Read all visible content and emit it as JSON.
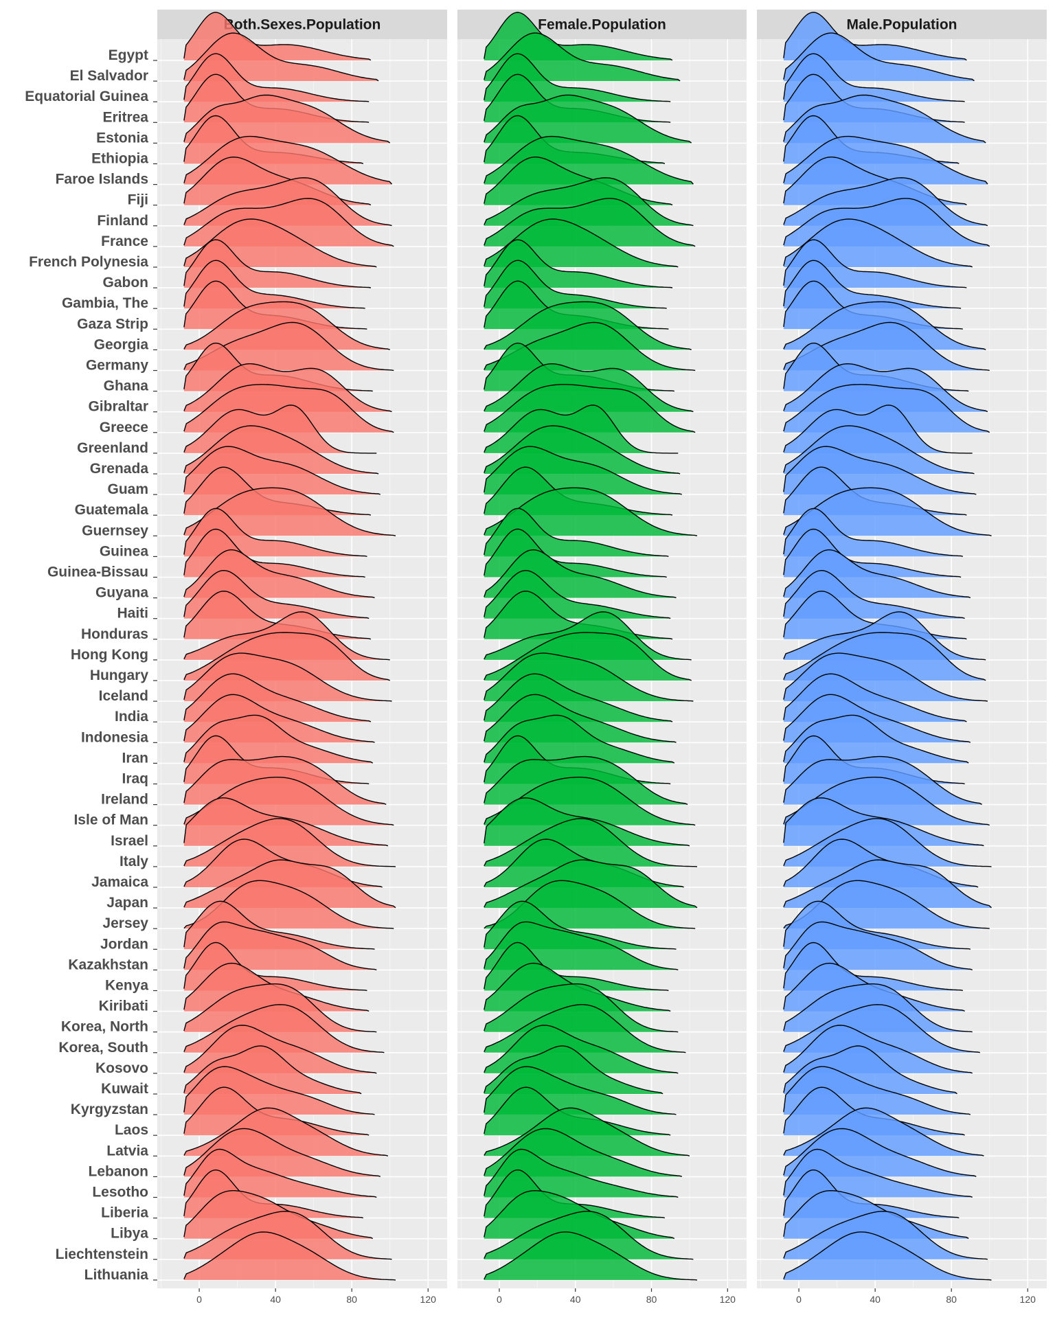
{
  "chart_data": {
    "type": "ridgeline",
    "facets": [
      "Both.Sexes.Population",
      "Female.Population",
      "Male.Population"
    ],
    "x_ticks": [
      0,
      40,
      80,
      120
    ],
    "xlim": [
      -22,
      130
    ],
    "countries": [
      {
        "name": "Egypt",
        "peaks": [
          [
            8,
            1.0,
            10
          ],
          [
            45,
            0.35,
            20
          ]
        ],
        "end": 90
      },
      {
        "name": "El Salvador",
        "peaks": [
          [
            17,
            0.9,
            14
          ],
          [
            55,
            0.3,
            18
          ]
        ],
        "end": 94
      },
      {
        "name": "Equatorial Guinea",
        "peaks": [
          [
            8,
            1.0,
            10
          ],
          [
            40,
            0.3,
            18
          ]
        ],
        "end": 89
      },
      {
        "name": "Eritrea",
        "peaks": [
          [
            8,
            1.0,
            10
          ],
          [
            40,
            0.3,
            18
          ]
        ],
        "end": 89
      },
      {
        "name": "Estonia",
        "peaks": [
          [
            8,
            0.55,
            10
          ],
          [
            30,
            0.6,
            12
          ],
          [
            55,
            0.7,
            18
          ]
        ],
        "end": 100
      },
      {
        "name": "Ethiopia",
        "peaks": [
          [
            8,
            1.0,
            10
          ],
          [
            40,
            0.25,
            20
          ]
        ],
        "end": 86
      },
      {
        "name": "Faroe Islands",
        "peaks": [
          [
            20,
            0.6,
            16
          ],
          [
            55,
            0.55,
            20
          ]
        ],
        "end": 101
      },
      {
        "name": "Fiji",
        "peaks": [
          [
            15,
            0.8,
            14
          ],
          [
            45,
            0.45,
            18
          ]
        ],
        "end": 90
      },
      {
        "name": "Finland",
        "peaks": [
          [
            15,
            0.45,
            14
          ],
          [
            40,
            0.55,
            16
          ],
          [
            62,
            0.7,
            14
          ]
        ],
        "end": 101
      },
      {
        "name": "France",
        "peaks": [
          [
            15,
            0.55,
            14
          ],
          [
            45,
            0.6,
            18
          ],
          [
            65,
            0.55,
            14
          ]
        ],
        "end": 102
      },
      {
        "name": "French Polynesia",
        "peaks": [
          [
            20,
            0.8,
            16
          ],
          [
            45,
            0.6,
            18
          ]
        ],
        "end": 93
      },
      {
        "name": "Gabon",
        "peaks": [
          [
            8,
            1.0,
            10
          ],
          [
            40,
            0.35,
            18
          ]
        ],
        "end": 90
      },
      {
        "name": "Gambia, The",
        "peaks": [
          [
            8,
            1.0,
            10
          ],
          [
            38,
            0.3,
            18
          ]
        ],
        "end": 87
      },
      {
        "name": "Gaza Strip",
        "peaks": [
          [
            8,
            1.0,
            10
          ],
          [
            38,
            0.3,
            18
          ]
        ],
        "end": 88
      },
      {
        "name": "Georgia",
        "peaks": [
          [
            25,
            0.6,
            16
          ],
          [
            55,
            0.65,
            16
          ]
        ],
        "end": 100
      },
      {
        "name": "Germany",
        "peaks": [
          [
            20,
            0.45,
            16
          ],
          [
            52,
            0.8,
            16
          ]
        ],
        "end": 102
      },
      {
        "name": "Ghana",
        "peaks": [
          [
            8,
            1.0,
            10
          ],
          [
            40,
            0.35,
            18
          ]
        ],
        "end": 91
      },
      {
        "name": "Gibraltar",
        "peaks": [
          [
            25,
            0.65,
            16
          ],
          [
            62,
            0.55,
            14
          ]
        ],
        "end": 101
      },
      {
        "name": "Greece",
        "peaks": [
          [
            15,
            0.45,
            14
          ],
          [
            42,
            0.7,
            18
          ],
          [
            70,
            0.45,
            12
          ]
        ],
        "end": 102
      },
      {
        "name": "Greenland",
        "peaks": [
          [
            20,
            0.75,
            14
          ],
          [
            50,
            0.75,
            10
          ]
        ],
        "end": 93
      },
      {
        "name": "Grenada",
        "peaks": [
          [
            22,
            0.75,
            16
          ],
          [
            50,
            0.45,
            16
          ]
        ],
        "end": 94
      },
      {
        "name": "Guam",
        "peaks": [
          [
            12,
            0.8,
            14
          ],
          [
            45,
            0.55,
            18
          ]
        ],
        "end": 95
      },
      {
        "name": "Guatemala",
        "peaks": [
          [
            12,
            1.0,
            12
          ],
          [
            45,
            0.25,
            18
          ]
        ],
        "end": 90
      },
      {
        "name": "Guernsey",
        "peaks": [
          [
            20,
            0.55,
            16
          ],
          [
            50,
            0.7,
            18
          ]
        ],
        "end": 103
      },
      {
        "name": "Guinea",
        "peaks": [
          [
            8,
            1.0,
            10
          ],
          [
            40,
            0.35,
            18
          ]
        ],
        "end": 88
      },
      {
        "name": "Guinea-Bissau",
        "peaks": [
          [
            8,
            1.0,
            10
          ],
          [
            40,
            0.3,
            18
          ]
        ],
        "end": 87
      },
      {
        "name": "Guyana",
        "peaks": [
          [
            15,
            0.9,
            12
          ],
          [
            45,
            0.45,
            18
          ]
        ],
        "end": 92
      },
      {
        "name": "Haiti",
        "peaks": [
          [
            12,
            1.0,
            12
          ],
          [
            45,
            0.3,
            18
          ]
        ],
        "end": 89
      },
      {
        "name": "Honduras",
        "peaks": [
          [
            12,
            1.0,
            12
          ],
          [
            45,
            0.3,
            18
          ]
        ],
        "end": 90
      },
      {
        "name": "Hong Kong",
        "peaks": [
          [
            20,
            0.4,
            16
          ],
          [
            55,
            0.8,
            14
          ]
        ],
        "end": 100
      },
      {
        "name": "Hungary",
        "peaks": [
          [
            20,
            0.45,
            16
          ],
          [
            45,
            0.7,
            16
          ],
          [
            68,
            0.5,
            12
          ]
        ],
        "end": 100
      },
      {
        "name": "Iceland",
        "peaks": [
          [
            15,
            0.65,
            14
          ],
          [
            45,
            0.65,
            18
          ]
        ],
        "end": 101
      },
      {
        "name": "India",
        "peaks": [
          [
            15,
            0.9,
            14
          ],
          [
            45,
            0.45,
            18
          ]
        ],
        "end": 90
      },
      {
        "name": "Indonesia",
        "peaks": [
          [
            15,
            0.9,
            14
          ],
          [
            45,
            0.45,
            18
          ]
        ],
        "end": 92
      },
      {
        "name": "Iran",
        "peaks": [
          [
            8,
            0.6,
            10
          ],
          [
            30,
            0.8,
            12
          ],
          [
            55,
            0.3,
            16
          ]
        ],
        "end": 91
      },
      {
        "name": "Iraq",
        "peaks": [
          [
            8,
            1.0,
            10
          ],
          [
            40,
            0.35,
            18
          ]
        ],
        "end": 89
      },
      {
        "name": "Ireland",
        "peaks": [
          [
            10,
            0.55,
            12
          ],
          [
            38,
            0.65,
            16
          ],
          [
            62,
            0.4,
            14
          ]
        ],
        "end": 98
      },
      {
        "name": "Isle of Man",
        "peaks": [
          [
            20,
            0.5,
            16
          ],
          [
            50,
            0.7,
            18
          ]
        ],
        "end": 102
      },
      {
        "name": "Israel",
        "peaks": [
          [
            10,
            0.8,
            14
          ],
          [
            45,
            0.5,
            20
          ]
        ],
        "end": 99
      },
      {
        "name": "Italy",
        "peaks": [
          [
            20,
            0.45,
            16
          ],
          [
            47,
            0.8,
            16
          ]
        ],
        "end": 103
      },
      {
        "name": "Jamaica",
        "peaks": [
          [
            22,
            0.9,
            14
          ],
          [
            55,
            0.4,
            16
          ]
        ],
        "end": 96
      },
      {
        "name": "Japan",
        "peaks": [
          [
            20,
            0.45,
            16
          ],
          [
            42,
            0.6,
            12
          ],
          [
            68,
            0.7,
            14
          ]
        ],
        "end": 103
      },
      {
        "name": "Jersey",
        "peaks": [
          [
            25,
            0.75,
            14
          ],
          [
            52,
            0.65,
            16
          ]
        ],
        "end": 102
      },
      {
        "name": "Jordan",
        "peaks": [
          [
            10,
            1.0,
            12
          ],
          [
            42,
            0.35,
            18
          ]
        ],
        "end": 92
      },
      {
        "name": "Kazakhstan",
        "peaks": [
          [
            8,
            0.6,
            10
          ],
          [
            28,
            0.6,
            14
          ],
          [
            55,
            0.4,
            14
          ]
        ],
        "end": 93
      },
      {
        "name": "Kenya",
        "peaks": [
          [
            8,
            1.0,
            10
          ],
          [
            40,
            0.3,
            18
          ]
        ],
        "end": 88
      },
      {
        "name": "Kiribati",
        "peaks": [
          [
            15,
            0.9,
            14
          ],
          [
            45,
            0.35,
            18
          ]
        ],
        "end": 89
      },
      {
        "name": "Korea, North",
        "peaks": [
          [
            20,
            0.7,
            16
          ],
          [
            48,
            0.7,
            14
          ]
        ],
        "end": 93
      },
      {
        "name": "Korea, South",
        "peaks": [
          [
            20,
            0.5,
            16
          ],
          [
            48,
            0.8,
            16
          ]
        ],
        "end": 97
      },
      {
        "name": "Kosovo",
        "peaks": [
          [
            20,
            0.85,
            14
          ],
          [
            50,
            0.45,
            16
          ]
        ],
        "end": 93
      },
      {
        "name": "Kuwait",
        "peaks": [
          [
            8,
            0.55,
            10
          ],
          [
            32,
            0.9,
            12
          ],
          [
            55,
            0.25,
            14
          ]
        ],
        "end": 85
      },
      {
        "name": "Kyrgyzstan",
        "peaks": [
          [
            8,
            0.8,
            12
          ],
          [
            28,
            0.6,
            14
          ],
          [
            55,
            0.35,
            14
          ]
        ],
        "end": 92
      },
      {
        "name": "Laos",
        "peaks": [
          [
            12,
            1.0,
            12
          ],
          [
            45,
            0.35,
            18
          ]
        ],
        "end": 89
      },
      {
        "name": "Latvia",
        "peaks": [
          [
            20,
            0.45,
            16
          ],
          [
            35,
            0.55,
            12
          ],
          [
            55,
            0.6,
            16
          ]
        ],
        "end": 99
      },
      {
        "name": "Lebanon",
        "peaks": [
          [
            15,
            0.7,
            14
          ],
          [
            30,
            0.6,
            14
          ],
          [
            55,
            0.4,
            16
          ]
        ],
        "end": 95
      },
      {
        "name": "Lesotho",
        "peaks": [
          [
            8,
            0.9,
            10
          ],
          [
            28,
            0.55,
            14
          ],
          [
            55,
            0.25,
            16
          ]
        ],
        "end": 93
      },
      {
        "name": "Liberia",
        "peaks": [
          [
            8,
            1.0,
            10
          ],
          [
            40,
            0.3,
            18
          ]
        ],
        "end": 86
      },
      {
        "name": "Libya",
        "peaks": [
          [
            10,
            0.7,
            12
          ],
          [
            32,
            0.7,
            14
          ],
          [
            60,
            0.25,
            14
          ]
        ],
        "end": 91
      },
      {
        "name": "Liechtenstein",
        "peaks": [
          [
            20,
            0.5,
            16
          ],
          [
            50,
            0.8,
            16
          ]
        ],
        "end": 101
      },
      {
        "name": "Lithuania",
        "peaks": [
          [
            15,
            0.45,
            14
          ],
          [
            32,
            0.55,
            12
          ],
          [
            52,
            0.65,
            16
          ]
        ],
        "end": 103
      }
    ]
  },
  "colors": {
    "facet_fill": [
      "#F8766D",
      "#00BA38",
      "#619CFF"
    ],
    "panel_bg": "#EBEBEB",
    "strip_bg": "#D9D9D9",
    "grid_major": "#FFFFFF",
    "grid_minor": "#F5F5F5",
    "label": "#4D4D4D",
    "strip_text": "#1A1A1A"
  }
}
